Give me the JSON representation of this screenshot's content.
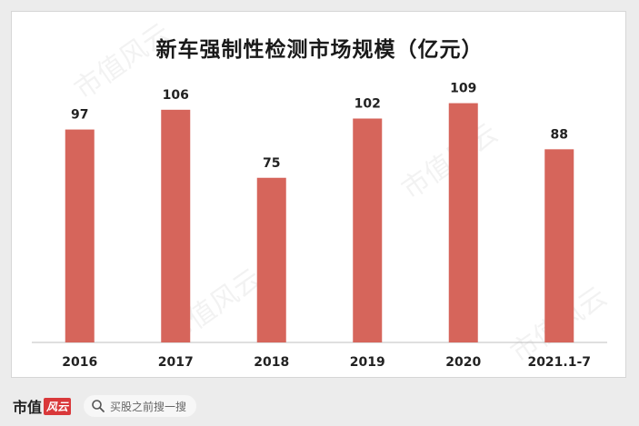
{
  "watermark": "市值风云",
  "chart_data": {
    "type": "bar",
    "title": "新车强制性检测市场规模（亿元）",
    "categories": [
      "2016",
      "2017",
      "2018",
      "2019",
      "2020",
      "2021.1-7"
    ],
    "values": [
      97,
      106,
      75,
      102,
      109,
      88
    ],
    "data_labels": [
      "97",
      "106",
      "75",
      "102",
      "109",
      "88"
    ],
    "ylim": [
      0,
      120
    ],
    "bar_color": "#d6655b",
    "grid": false,
    "legend": "none"
  },
  "footer": {
    "logo_text": "市值",
    "logo_badge": "风云",
    "search_placeholder": "买股之前搜一搜"
  }
}
